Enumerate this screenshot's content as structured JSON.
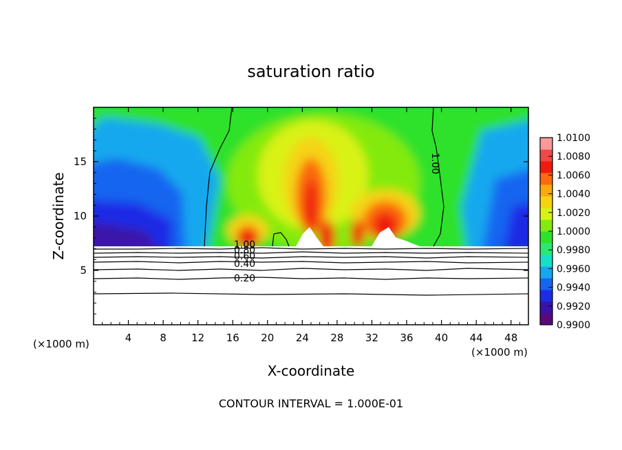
{
  "chart_data": {
    "type": "heatmap",
    "title": "saturation ratio",
    "xlabel": "X-coordinate",
    "ylabel": "Z-coordinate",
    "x_unit_left": "(×1000 m)",
    "x_unit_right": "(×1000 m)",
    "footer": "CONTOUR INTERVAL = 1.000E-01",
    "xlim": [
      0,
      50
    ],
    "ylim": [
      0,
      20
    ],
    "x_ticks": [
      4,
      8,
      12,
      16,
      20,
      24,
      28,
      32,
      36,
      40,
      44,
      48
    ],
    "y_ticks": [
      5,
      10,
      15
    ],
    "colorbar": {
      "min": 0.99,
      "max": 1.01,
      "tick_labels": [
        "1.0100",
        "1.0080",
        "1.0060",
        "1.0040",
        "1.0020",
        "1.0000",
        "0.9980",
        "0.9960",
        "0.9940",
        "0.9920",
        "0.9900"
      ],
      "colors": [
        "#5a0a78",
        "#3a12a8",
        "#1c2ce6",
        "#1565f0",
        "#15a8ee",
        "#18e0c8",
        "#2ce872",
        "#2fe12b",
        "#84ea10",
        "#d9f215",
        "#f5d312",
        "#fba90f",
        "#fb6a10",
        "#f01a10",
        "#f04848",
        "#f79a9a"
      ]
    },
    "contours": [
      {
        "label": "0.20",
        "z": 4.4
      },
      {
        "label": "0.40",
        "z": 5.7
      },
      {
        "label": "0.60",
        "z": 6.3
      },
      {
        "label": "0.80",
        "z": 6.7
      },
      {
        "label": "1.00",
        "z": 7.1
      },
      {
        "label": "1.00",
        "z": 15.0
      }
    ]
  }
}
